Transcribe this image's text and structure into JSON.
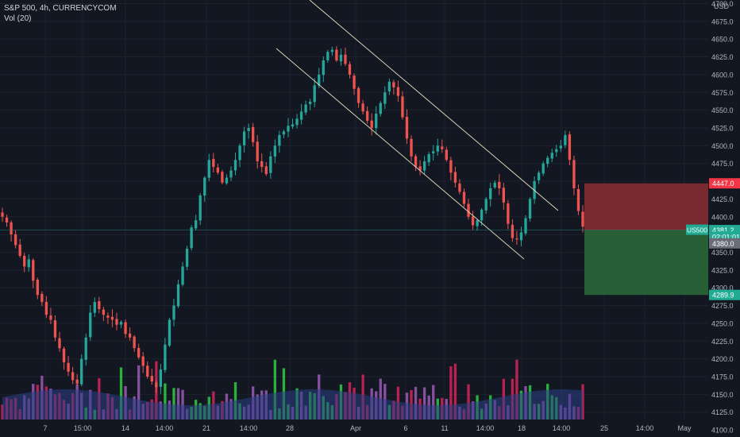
{
  "legend": {
    "symbol_line": "S&P 500, 4h, CURRENCYCOM",
    "volume_line": "Vol (20)"
  },
  "colors": {
    "background": "#131722",
    "up": "#26a69a",
    "down": "#ef5350",
    "channel": "#d9d4b8",
    "stop_zone": "#8a2e33",
    "target_zone": "#2d6b3a",
    "volume_up": "#2ecc40",
    "volume_down": "#d6245a",
    "volume_ma_area": "#2c3f86",
    "volume_purple": "#9b59b6"
  },
  "chart_data": {
    "type": "candlestick",
    "title": "S&P 500, 4h, CURRENCYCOM",
    "price_axis_unit": "USD",
    "ylim": [
      4090,
      4705
    ],
    "y_ticks": [
      "4700.0",
      "4675.0",
      "4650.0",
      "4625.0",
      "4600.0",
      "4575.0",
      "4550.0",
      "4525.0",
      "4500.0",
      "4475.0",
      "4450.0",
      "4425.0",
      "4400.0",
      "4375.0",
      "4350.0",
      "4325.0",
      "4300.0",
      "4275.0",
      "4250.0",
      "4225.0",
      "4200.0",
      "4175.0",
      "4150.0",
      "4125.0",
      "4100.0"
    ],
    "x_ticks": [
      "7",
      "15:00",
      "14",
      "14:00",
      "21",
      "14:00",
      "28",
      "Apr",
      "6",
      "11",
      "14:00",
      "18",
      "14:00",
      "25",
      "14:00",
      "May"
    ],
    "close_path": [
      4400,
      4392,
      4375,
      4360,
      4345,
      4330,
      4340,
      4310,
      4290,
      4280,
      4262,
      4255,
      4230,
      4215,
      4195,
      4182,
      4170,
      4165,
      4200,
      4230,
      4265,
      4280,
      4270,
      4262,
      4258,
      4255,
      4248,
      4252,
      4235,
      4230,
      4215,
      4202,
      4190,
      4175,
      4168,
      4160,
      4185,
      4220,
      4255,
      4275,
      4305,
      4330,
      4355,
      4385,
      4395,
      4430,
      4455,
      4480,
      4470,
      4462,
      4448,
      4455,
      4465,
      4480,
      4500,
      4520,
      4525,
      4505,
      4478,
      4470,
      4460,
      4485,
      4500,
      4515,
      4520,
      4528,
      4530,
      4538,
      4548,
      4558,
      4562,
      4585,
      4600,
      4620,
      4632,
      4635,
      4620,
      4628,
      4615,
      4600,
      4580,
      4560,
      4548,
      4535,
      4525,
      4545,
      4560,
      4575,
      4590,
      4582,
      4570,
      4540,
      4510,
      4485,
      4470,
      4465,
      4478,
      4488,
      4492,
      4500,
      4495,
      4480,
      4462,
      4448,
      4435,
      4418,
      4400,
      4388,
      4395,
      4410,
      4425,
      4440,
      4448,
      4440,
      4420,
      4390,
      4370,
      4368,
      4378,
      4398,
      4425,
      4450,
      4462,
      4475,
      4483,
      4490,
      4495,
      4500,
      4515,
      4480,
      4440,
      4408,
      4386
    ],
    "channel_upper": {
      "from": [
        "Mar 30 2022",
        4720
      ],
      "to": [
        "Apr 21 2022",
        4395
      ]
    },
    "channel_lower": {
      "from": [
        "Mar 28 2022",
        4628
      ],
      "to": [
        "Apr 19 2022",
        4325
      ]
    },
    "position": {
      "type": "short",
      "stop_price": 4447.0,
      "entry_price": 4381.2,
      "target_price": 4289.9
    },
    "price_labels": [
      {
        "text": "4447.0",
        "price": 4447.0,
        "color": "#f23645"
      },
      {
        "text": "4381.2",
        "price": 4381.2,
        "color": "#22ab94"
      },
      {
        "text": "02:01:01",
        "price": 4372.0,
        "color": "#22ab94"
      },
      {
        "text": "4380.0",
        "price": 4362.5,
        "color": "#6a6d78"
      },
      {
        "text": "4289.9",
        "price": 4289.9,
        "color": "#22ab94"
      }
    ],
    "symbol_tag": "US500",
    "last_price": 4381.2,
    "volume_series": {
      "name": "Vol (20)"
    }
  }
}
